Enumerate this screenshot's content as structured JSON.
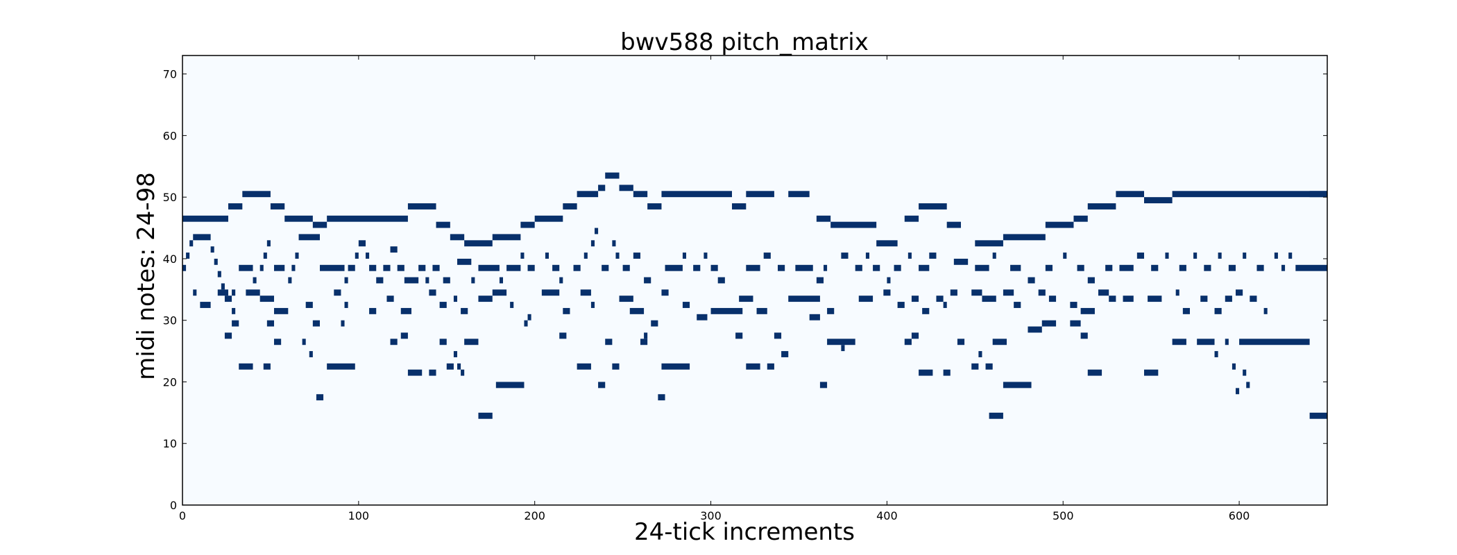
{
  "chart_data": {
    "type": "heatmap",
    "title": "bwv588 pitch_matrix",
    "xlabel": "24-tick increments",
    "ylabel": "midi notes: 24-98",
    "xlim": [
      0,
      650
    ],
    "ylim": [
      0,
      73
    ],
    "x_ticks": [
      0,
      100,
      200,
      300,
      400,
      500,
      600
    ],
    "y_ticks": [
      0,
      10,
      20,
      30,
      40,
      50,
      60,
      70
    ],
    "grid": false,
    "colors": {
      "background": "#f7fbff",
      "note": "#08306b"
    },
    "notes": [
      [
        0,
        46,
        26
      ],
      [
        26,
        48,
        8
      ],
      [
        34,
        50,
        16
      ],
      [
        50,
        48,
        8
      ],
      [
        58,
        46,
        16
      ],
      [
        74,
        45,
        8
      ],
      [
        82,
        46,
        46
      ],
      [
        128,
        48,
        16
      ],
      [
        144,
        45,
        8
      ],
      [
        152,
        43,
        8
      ],
      [
        160,
        42,
        16
      ],
      [
        176,
        43,
        16
      ],
      [
        192,
        45,
        8
      ],
      [
        200,
        46,
        16
      ],
      [
        216,
        48,
        8
      ],
      [
        224,
        50,
        12
      ],
      [
        236,
        51,
        4
      ],
      [
        240,
        53,
        8
      ],
      [
        248,
        51,
        8
      ],
      [
        256,
        50,
        8
      ],
      [
        264,
        48,
        8
      ],
      [
        272,
        50,
        40
      ],
      [
        312,
        48,
        8
      ],
      [
        320,
        50,
        16
      ],
      [
        344,
        50,
        12
      ],
      [
        360,
        46,
        8
      ],
      [
        368,
        45,
        26
      ],
      [
        394,
        42,
        12
      ],
      [
        410,
        46,
        8
      ],
      [
        418,
        48,
        16
      ],
      [
        434,
        45,
        8
      ],
      [
        450,
        42,
        16
      ],
      [
        466,
        43,
        24
      ],
      [
        490,
        45,
        16
      ],
      [
        506,
        46,
        8
      ],
      [
        514,
        48,
        16
      ],
      [
        530,
        50,
        16
      ],
      [
        546,
        49,
        16
      ],
      [
        562,
        50,
        88
      ],
      [
        640,
        50,
        10
      ],
      [
        0,
        38,
        2
      ],
      [
        2,
        40,
        2
      ],
      [
        4,
        42,
        2
      ],
      [
        6,
        43,
        10
      ],
      [
        16,
        41,
        2
      ],
      [
        18,
        39,
        2
      ],
      [
        20,
        37,
        2
      ],
      [
        22,
        35,
        2
      ],
      [
        24,
        33,
        4
      ],
      [
        28,
        31,
        2
      ],
      [
        32,
        38,
        8
      ],
      [
        40,
        36,
        2
      ],
      [
        44,
        38,
        2
      ],
      [
        46,
        40,
        2
      ],
      [
        48,
        42,
        2
      ],
      [
        52,
        38,
        6
      ],
      [
        60,
        36,
        2
      ],
      [
        62,
        38,
        2
      ],
      [
        64,
        40,
        2
      ],
      [
        66,
        43,
        12
      ],
      [
        78,
        38,
        14
      ],
      [
        92,
        36,
        2
      ],
      [
        94,
        38,
        4
      ],
      [
        98,
        40,
        2
      ],
      [
        100,
        42,
        4
      ],
      [
        104,
        40,
        2
      ],
      [
        106,
        38,
        4
      ],
      [
        110,
        36,
        4
      ],
      [
        114,
        38,
        4
      ],
      [
        118,
        41,
        4
      ],
      [
        122,
        38,
        4
      ],
      [
        126,
        36,
        8
      ],
      [
        134,
        38,
        4
      ],
      [
        138,
        36,
        2
      ],
      [
        142,
        38,
        4
      ],
      [
        148,
        36,
        4
      ],
      [
        156,
        39,
        8
      ],
      [
        164,
        36,
        2
      ],
      [
        168,
        38,
        12
      ],
      [
        180,
        36,
        2
      ],
      [
        184,
        38,
        8
      ],
      [
        192,
        40,
        2
      ],
      [
        196,
        38,
        4
      ],
      [
        206,
        40,
        2
      ],
      [
        210,
        38,
        4
      ],
      [
        214,
        36,
        2
      ],
      [
        222,
        38,
        4
      ],
      [
        228,
        40,
        2
      ],
      [
        232,
        42,
        2
      ],
      [
        234,
        44,
        2
      ],
      [
        238,
        38,
        4
      ],
      [
        244,
        42,
        2
      ],
      [
        246,
        40,
        2
      ],
      [
        250,
        38,
        4
      ],
      [
        256,
        40,
        4
      ],
      [
        262,
        36,
        4
      ],
      [
        274,
        38,
        10
      ],
      [
        284,
        40,
        2
      ],
      [
        290,
        38,
        4
      ],
      [
        296,
        40,
        2
      ],
      [
        300,
        38,
        4
      ],
      [
        304,
        36,
        4
      ],
      [
        320,
        38,
        8
      ],
      [
        330,
        40,
        4
      ],
      [
        338,
        38,
        4
      ],
      [
        348,
        38,
        10
      ],
      [
        360,
        36,
        4
      ],
      [
        364,
        38,
        2
      ],
      [
        374,
        40,
        4
      ],
      [
        382,
        38,
        4
      ],
      [
        388,
        40,
        2
      ],
      [
        392,
        38,
        4
      ],
      [
        400,
        36,
        2
      ],
      [
        404,
        38,
        4
      ],
      [
        412,
        40,
        2
      ],
      [
        418,
        38,
        6
      ],
      [
        424,
        40,
        4
      ],
      [
        438,
        39,
        8
      ],
      [
        450,
        38,
        8
      ],
      [
        460,
        40,
        2
      ],
      [
        470,
        38,
        6
      ],
      [
        480,
        36,
        4
      ],
      [
        490,
        38,
        4
      ],
      [
        500,
        40,
        2
      ],
      [
        508,
        38,
        4
      ],
      [
        514,
        36,
        4
      ],
      [
        524,
        38,
        4
      ],
      [
        532,
        38,
        8
      ],
      [
        542,
        40,
        4
      ],
      [
        550,
        38,
        4
      ],
      [
        558,
        40,
        2
      ],
      [
        566,
        38,
        4
      ],
      [
        574,
        40,
        2
      ],
      [
        580,
        38,
        4
      ],
      [
        588,
        40,
        2
      ],
      [
        594,
        38,
        4
      ],
      [
        602,
        40,
        2
      ],
      [
        610,
        38,
        4
      ],
      [
        620,
        40,
        2
      ],
      [
        624,
        38,
        2
      ],
      [
        628,
        40,
        2
      ],
      [
        632,
        38,
        18
      ],
      [
        6,
        34,
        2
      ],
      [
        10,
        32,
        6
      ],
      [
        20,
        34,
        6
      ],
      [
        28,
        34,
        2
      ],
      [
        36,
        34,
        8
      ],
      [
        44,
        33,
        8
      ],
      [
        52,
        31,
        8
      ],
      [
        70,
        32,
        4
      ],
      [
        86,
        34,
        4
      ],
      [
        92,
        32,
        2
      ],
      [
        106,
        31,
        4
      ],
      [
        116,
        33,
        4
      ],
      [
        124,
        31,
        6
      ],
      [
        140,
        34,
        4
      ],
      [
        146,
        32,
        4
      ],
      [
        154,
        33,
        2
      ],
      [
        158,
        31,
        4
      ],
      [
        168,
        33,
        8
      ],
      [
        176,
        34,
        8
      ],
      [
        186,
        32,
        2
      ],
      [
        196,
        30,
        2
      ],
      [
        204,
        34,
        10
      ],
      [
        216,
        31,
        4
      ],
      [
        226,
        34,
        6
      ],
      [
        232,
        32,
        2
      ],
      [
        248,
        33,
        8
      ],
      [
        254,
        31,
        8
      ],
      [
        272,
        34,
        4
      ],
      [
        284,
        32,
        4
      ],
      [
        292,
        30,
        6
      ],
      [
        300,
        31,
        18
      ],
      [
        316,
        33,
        8
      ],
      [
        326,
        31,
        6
      ],
      [
        344,
        33,
        18
      ],
      [
        356,
        30,
        6
      ],
      [
        366,
        31,
        4
      ],
      [
        384,
        33,
        8
      ],
      [
        398,
        34,
        4
      ],
      [
        406,
        32,
        4
      ],
      [
        414,
        33,
        4
      ],
      [
        420,
        31,
        4
      ],
      [
        428,
        33,
        4
      ],
      [
        432,
        32,
        2
      ],
      [
        436,
        34,
        4
      ],
      [
        448,
        34,
        6
      ],
      [
        454,
        33,
        8
      ],
      [
        466,
        34,
        6
      ],
      [
        472,
        32,
        4
      ],
      [
        486,
        34,
        4
      ],
      [
        492,
        33,
        4
      ],
      [
        504,
        32,
        4
      ],
      [
        510,
        31,
        8
      ],
      [
        520,
        34,
        6
      ],
      [
        526,
        33,
        4
      ],
      [
        534,
        33,
        6
      ],
      [
        548,
        33,
        8
      ],
      [
        564,
        34,
        2
      ],
      [
        568,
        31,
        4
      ],
      [
        578,
        33,
        4
      ],
      [
        586,
        31,
        4
      ],
      [
        592,
        33,
        4
      ],
      [
        598,
        34,
        4
      ],
      [
        606,
        33,
        4
      ],
      [
        614,
        31,
        2
      ],
      [
        24,
        27,
        4
      ],
      [
        28,
        29,
        4
      ],
      [
        32,
        22,
        8
      ],
      [
        46,
        22,
        4
      ],
      [
        48,
        29,
        4
      ],
      [
        52,
        26,
        4
      ],
      [
        68,
        26,
        2
      ],
      [
        72,
        24,
        2
      ],
      [
        74,
        29,
        4
      ],
      [
        76,
        17,
        4
      ],
      [
        82,
        22,
        16
      ],
      [
        90,
        29,
        2
      ],
      [
        118,
        26,
        4
      ],
      [
        124,
        27,
        4
      ],
      [
        128,
        21,
        8
      ],
      [
        140,
        21,
        4
      ],
      [
        146,
        26,
        4
      ],
      [
        150,
        22,
        4
      ],
      [
        154,
        24,
        2
      ],
      [
        156,
        22,
        2
      ],
      [
        158,
        21,
        2
      ],
      [
        160,
        26,
        8
      ],
      [
        168,
        14,
        8
      ],
      [
        178,
        19,
        16
      ],
      [
        194,
        29,
        2
      ],
      [
        214,
        27,
        4
      ],
      [
        224,
        22,
        8
      ],
      [
        236,
        19,
        4
      ],
      [
        240,
        26,
        4
      ],
      [
        244,
        22,
        4
      ],
      [
        260,
        26,
        4
      ],
      [
        262,
        27,
        2
      ],
      [
        266,
        29,
        4
      ],
      [
        270,
        17,
        4
      ],
      [
        272,
        22,
        16
      ],
      [
        314,
        27,
        4
      ],
      [
        320,
        22,
        8
      ],
      [
        332,
        22,
        4
      ],
      [
        336,
        27,
        4
      ],
      [
        340,
        24,
        4
      ],
      [
        362,
        19,
        4
      ],
      [
        366,
        26,
        16
      ],
      [
        374,
        25,
        2
      ],
      [
        410,
        26,
        4
      ],
      [
        414,
        27,
        4
      ],
      [
        418,
        21,
        8
      ],
      [
        432,
        21,
        4
      ],
      [
        440,
        26,
        4
      ],
      [
        448,
        22,
        4
      ],
      [
        452,
        24,
        2
      ],
      [
        456,
        22,
        4
      ],
      [
        458,
        14,
        8
      ],
      [
        460,
        26,
        8
      ],
      [
        466,
        19,
        16
      ],
      [
        480,
        28,
        8
      ],
      [
        488,
        29,
        8
      ],
      [
        504,
        29,
        6
      ],
      [
        510,
        27,
        4
      ],
      [
        514,
        21,
        8
      ],
      [
        546,
        21,
        8
      ],
      [
        562,
        26,
        8
      ],
      [
        576,
        26,
        10
      ],
      [
        586,
        24,
        2
      ],
      [
        592,
        26,
        2
      ],
      [
        596,
        22,
        2
      ],
      [
        598,
        18,
        2
      ],
      [
        600,
        26,
        40
      ],
      [
        602,
        21,
        2
      ],
      [
        604,
        19,
        2
      ],
      [
        640,
        14,
        10
      ]
    ]
  }
}
